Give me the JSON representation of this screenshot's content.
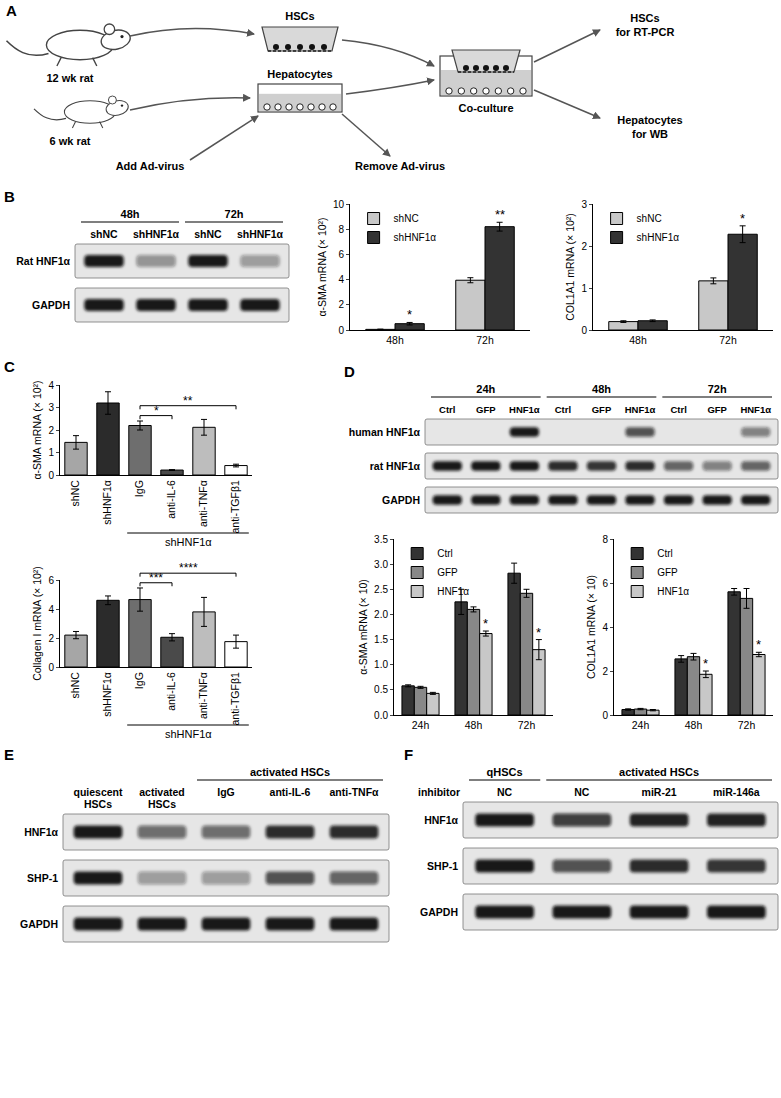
{
  "diagram": {
    "panel": "A",
    "old_rat": "12 wk rat",
    "young_rat": "6 wk rat",
    "hsc_well": "HSCs",
    "hep_well": "Hepatocytes",
    "add": "Add Ad-virus",
    "remove": "Remove Ad-virus",
    "coculture": "Co-culture",
    "out_hsc": [
      "HSCs",
      "for RT-PCR"
    ],
    "out_hep": [
      "Hepatocytes",
      "for WB"
    ]
  },
  "blots": [
    {
      "panel": "B",
      "groups": [
        {
          "label": "48h",
          "first": 0,
          "span": 2
        },
        {
          "label": "72h",
          "first": 2,
          "span": 2
        }
      ],
      "lanes": [
        "shNC",
        "shHNF1α",
        "shNC",
        "shHNF1α"
      ],
      "rows": [
        {
          "label": "Rat HNF1α",
          "intensity": [
            1,
            0.35,
            1,
            0.3
          ]
        },
        {
          "label": "GAPDH",
          "intensity": [
            1,
            1,
            1,
            1
          ]
        }
      ]
    },
    {
      "panel": "D",
      "groups": [
        {
          "label": "24h",
          "first": 0,
          "span": 3
        },
        {
          "label": "48h",
          "first": 3,
          "span": 3
        },
        {
          "label": "72h",
          "first": 6,
          "span": 3
        }
      ],
      "lanes": [
        "Ctrl",
        "GFP",
        "HNF1α",
        "Ctrl",
        "GFP",
        "HNF1α",
        "Ctrl",
        "GFP",
        "HNF1α"
      ],
      "rows": [
        {
          "label": "human HNF1α",
          "intensity": [
            0,
            0,
            1,
            0,
            0,
            0.7,
            0,
            0,
            0.45
          ]
        },
        {
          "label": "rat HNF1α",
          "intensity": [
            1,
            1,
            1,
            0.9,
            0.85,
            0.9,
            0.6,
            0.45,
            0.6
          ]
        },
        {
          "label": "GAPDH",
          "intensity": [
            1,
            1,
            1,
            1,
            1,
            1,
            1,
            1,
            1
          ]
        }
      ]
    },
    {
      "panel": "E",
      "groups": [
        {
          "label": "activated HSCs",
          "first": 2,
          "span": 3
        }
      ],
      "lanes": [
        "quiescent HSCs",
        "activated HSCs",
        "IgG",
        "anti-IL-6",
        "anti-TNFα"
      ],
      "rows": [
        {
          "label": "HNF1α",
          "intensity": [
            1,
            0.55,
            0.55,
            0.9,
            0.9
          ]
        },
        {
          "label": "SHP-1",
          "intensity": [
            1,
            0.3,
            0.3,
            0.7,
            0.6
          ]
        },
        {
          "label": "GAPDH",
          "intensity": [
            1,
            1,
            1,
            1,
            1
          ]
        }
      ]
    },
    {
      "panel": "F",
      "side_label": "inhibitor",
      "groups": [
        {
          "label": "qHSCs",
          "first": 0,
          "span": 1
        },
        {
          "label": "activated HSCs",
          "first": 1,
          "span": 3
        }
      ],
      "lanes": [
        "NC",
        "NC",
        "miR-21",
        "miR-146a"
      ],
      "rows": [
        {
          "label": "HNF1α",
          "intensity": [
            1,
            0.8,
            0.95,
            0.95
          ]
        },
        {
          "label": "SHP-1",
          "intensity": [
            1,
            0.7,
            0.9,
            0.85
          ]
        },
        {
          "label": "GAPDH",
          "intensity": [
            1,
            1,
            1,
            1
          ]
        }
      ]
    }
  ],
  "chart_data": [
    {
      "type": "bar",
      "ylabel": "α-SMA mRNA (× 10²)",
      "categories": [
        "48h",
        "72h"
      ],
      "series": [
        {
          "name": "shNC",
          "color": "#c8c8c8",
          "values": [
            0.05,
            3.95
          ],
          "errors": [
            0.02,
            0.2
          ]
        },
        {
          "name": "shHNF1α",
          "color": "#333333",
          "values": [
            0.5,
            8.2
          ],
          "errors": [
            0.1,
            0.35
          ]
        }
      ],
      "ylim": [
        0,
        10
      ],
      "yticks": [
        0,
        2,
        4,
        6,
        8,
        10
      ],
      "grid": false,
      "legend": "top left",
      "annotations": [
        {
          "text": "*",
          "category": "48h",
          "series": "shHNF1α"
        },
        {
          "text": "**",
          "category": "72h",
          "series": "shHNF1α"
        }
      ]
    },
    {
      "type": "bar",
      "ylabel": "COL1A1 mRNA (× 10²)",
      "categories": [
        "48h",
        "72h"
      ],
      "series": [
        {
          "name": "shNC",
          "color": "#c8c8c8",
          "values": [
            0.2,
            1.17
          ],
          "errors": [
            0.02,
            0.07
          ]
        },
        {
          "name": "shHNF1α",
          "color": "#333333",
          "values": [
            0.22,
            2.28
          ],
          "errors": [
            0.02,
            0.2
          ]
        }
      ],
      "ylim": [
        0,
        3
      ],
      "yticks": [
        0,
        1,
        2,
        3
      ],
      "grid": false,
      "legend": "top left",
      "annotations": [
        {
          "text": "*",
          "category": "72h",
          "series": "shHNF1α"
        }
      ]
    },
    {
      "panel": "C",
      "type": "bar",
      "ylabel": "α-SMA mRNA (× 10²)",
      "categories": [
        "shNC",
        "shHNF1α",
        "IgG",
        "anti-IL-6",
        "anti-TNFα",
        "anti-TGFβ1"
      ],
      "values": [
        1.45,
        3.2,
        2.2,
        0.22,
        2.12,
        0.42
      ],
      "errors": [
        0.3,
        0.5,
        0.2,
        0.02,
        0.35,
        0.06
      ],
      "colors": [
        "#a6a6a6",
        "#2b2b2b",
        "#6e6e6e",
        "#4a4a4a",
        "#bdbdbd",
        "#ffffff"
      ],
      "ylim": [
        0,
        4
      ],
      "yticks": [
        0,
        1,
        2,
        3,
        4
      ],
      "grid": false,
      "group_label": {
        "text": "shHNF1α",
        "categories": [
          "IgG",
          "anti-IL-6",
          "anti-TNFα",
          "anti-TGFβ1"
        ]
      },
      "comparisons": [
        {
          "text": "*",
          "from": "IgG",
          "to": "anti-IL-6"
        },
        {
          "text": "**",
          "from": "IgG",
          "to": "anti-TGFβ1"
        }
      ]
    },
    {
      "type": "bar",
      "ylabel": "Collagen I mRNA (× 10²)",
      "categories": [
        "shNC",
        "shHNF1α",
        "IgG",
        "anti-IL-6",
        "anti-TNFα",
        "anti-TGFβ1"
      ],
      "values": [
        2.2,
        4.6,
        4.65,
        2.05,
        3.8,
        1.75
      ],
      "errors": [
        0.25,
        0.3,
        0.8,
        0.25,
        1.0,
        0.45
      ],
      "colors": [
        "#a6a6a6",
        "#2b2b2b",
        "#6e6e6e",
        "#4a4a4a",
        "#bdbdbd",
        "#ffffff"
      ],
      "ylim": [
        0,
        6
      ],
      "yticks": [
        0,
        2,
        4,
        6
      ],
      "grid": false,
      "group_label": {
        "text": "shHNF1α",
        "categories": [
          "IgG",
          "anti-IL-6",
          "anti-TNFα",
          "anti-TGFβ1"
        ]
      },
      "comparisons": [
        {
          "text": "***",
          "from": "IgG",
          "to": "anti-IL-6"
        },
        {
          "text": "****",
          "from": "IgG",
          "to": "anti-TGFβ1"
        }
      ]
    },
    {
      "type": "bar",
      "ylabel": "α-SMA mRNA (× 10)",
      "categories": [
        "24h",
        "48h",
        "72h"
      ],
      "series": [
        {
          "name": "Ctrl",
          "color": "#333333",
          "values": [
            0.58,
            2.25,
            2.82
          ],
          "errors": [
            0.02,
            0.25,
            0.2
          ]
        },
        {
          "name": "GFP",
          "color": "#888888",
          "values": [
            0.55,
            2.1,
            2.42
          ],
          "errors": [
            0.02,
            0.05,
            0.08
          ]
        },
        {
          "name": "HNF1α",
          "color": "#c8c8c8",
          "values": [
            0.43,
            1.62,
            1.3
          ],
          "errors": [
            0.02,
            0.05,
            0.2
          ]
        }
      ],
      "ylim": [
        0,
        3.5
      ],
      "yticks": [
        {
          "value": 0,
          "label": "0.0"
        },
        {
          "value": 0.5,
          "label": "0.5"
        },
        {
          "value": 1,
          "label": "1.0"
        },
        {
          "value": 1.5,
          "label": "1.5"
        },
        {
          "value": 2,
          "label": "2.0"
        },
        {
          "value": 2.5,
          "label": "2.5"
        },
        {
          "value": 3,
          "label": "3.0"
        },
        {
          "value": 3.5,
          "label": "3.5"
        }
      ],
      "grid": false,
      "legend": "top left",
      "annotations": [
        {
          "text": "*",
          "category": "48h",
          "series": "HNF1α"
        },
        {
          "text": "*",
          "category": "72h",
          "series": "HNF1α"
        }
      ]
    },
    {
      "type": "bar",
      "ylabel": "COL1A1 mRNA (× 10)",
      "categories": [
        "24h",
        "48h",
        "72h"
      ],
      "series": [
        {
          "name": "Ctrl",
          "color": "#333333",
          "values": [
            0.25,
            2.55,
            5.6
          ],
          "errors": [
            0.03,
            0.15,
            0.15
          ]
        },
        {
          "name": "GFP",
          "color": "#888888",
          "values": [
            0.27,
            2.65,
            5.3
          ],
          "errors": [
            0.03,
            0.15,
            0.45
          ]
        },
        {
          "name": "HNF1α",
          "color": "#c8c8c8",
          "values": [
            0.22,
            1.85,
            2.75
          ],
          "errors": [
            0.03,
            0.15,
            0.1
          ]
        }
      ],
      "ylim": [
        0,
        8
      ],
      "yticks": [
        0,
        2,
        4,
        6,
        8
      ],
      "grid": false,
      "legend": "top left",
      "annotations": [
        {
          "text": "*",
          "category": "48h",
          "series": "HNF1α"
        },
        {
          "text": "*",
          "category": "72h",
          "series": "HNF1α"
        }
      ]
    }
  ]
}
